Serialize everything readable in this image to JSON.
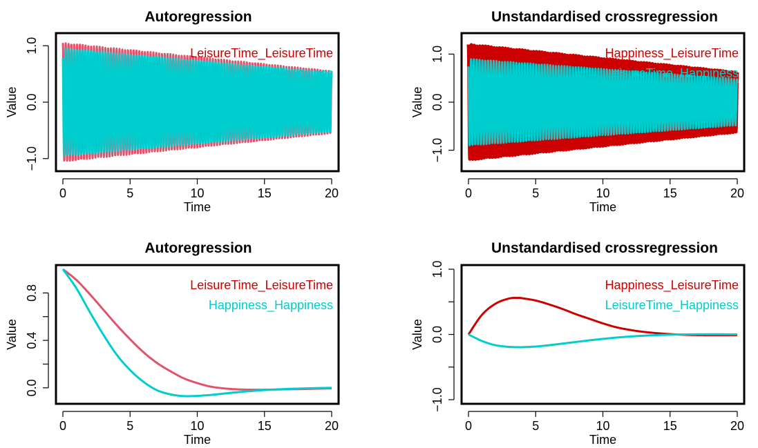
{
  "chart_data": [
    {
      "type": "line",
      "title": "Autoregression",
      "xlabel": "Time",
      "ylabel": "Value",
      "xlim": [
        0,
        20
      ],
      "ylim": [
        -1.15,
        1.15
      ],
      "xticks": [
        0,
        5,
        10,
        15,
        20
      ],
      "yticks": [
        -1.0,
        0.0,
        1.0
      ],
      "ytick_labels": [
        "−1.0",
        "0.0",
        "1.0"
      ],
      "legend": "top-right",
      "series": [
        {
          "name": "LeisureTime_LeisureTime",
          "color": "#DF536B",
          "kind": "oscillating",
          "envelope_start": 1.05,
          "envelope_end": 0.55,
          "cycles": 95,
          "width": 3
        },
        {
          "name": "Happiness_Happiness",
          "color": "#00CDCD",
          "kind": "oscillating",
          "envelope_start": 0.95,
          "envelope_end": 0.52,
          "cycles": 95,
          "width": 3
        }
      ],
      "legend_colors": [
        "#CC0000",
        "#00CDCD"
      ]
    },
    {
      "type": "line",
      "title": "Unstandardised crossregression",
      "xlabel": "Time",
      "ylabel": "Value",
      "xlim": [
        0,
        20
      ],
      "ylim": [
        -1.35,
        1.35
      ],
      "xticks": [
        0,
        5,
        10,
        15,
        20
      ],
      "yticks": [
        -1.0,
        0.0,
        1.0
      ],
      "ytick_labels": [
        "−1.0",
        "0.0",
        "1.0"
      ],
      "legend": "top-right",
      "series": [
        {
          "name": "Happiness_LeisureTime",
          "color": "#CC0000",
          "kind": "oscillating",
          "envelope_start": 1.2,
          "envelope_end": 0.62,
          "cycles": 95,
          "width": 5
        },
        {
          "name": "LeisureTime_Happiness",
          "color": "#00CDCD",
          "kind": "oscillating",
          "envelope_start": 0.9,
          "envelope_end": 0.48,
          "cycles": 95,
          "width": 3
        }
      ],
      "legend_colors": [
        "#CC0000",
        "#00CDCD"
      ]
    },
    {
      "type": "line",
      "title": "Autoregression",
      "xlabel": "Time",
      "ylabel": "Value",
      "xlim": [
        0,
        20
      ],
      "ylim": [
        -0.1,
        1.0
      ],
      "xticks": [
        0,
        5,
        10,
        15,
        20
      ],
      "yticks": [
        0.0,
        0.4,
        0.8
      ],
      "ytick_labels": [
        "0.0",
        "0.4",
        "0.8"
      ],
      "extra_yticks": [
        0.2,
        0.6
      ],
      "legend": "top-right",
      "series": [
        {
          "name": "LeisureTime_LeisureTime",
          "color": "#DF536B",
          "width": 3,
          "x": [
            0,
            1,
            2,
            3,
            4,
            5,
            6,
            7,
            8,
            9,
            10,
            11,
            12,
            13,
            14,
            15,
            16,
            17,
            18,
            19,
            20
          ],
          "y": [
            1.0,
            0.91,
            0.79,
            0.66,
            0.53,
            0.41,
            0.3,
            0.21,
            0.14,
            0.08,
            0.04,
            0.01,
            -0.005,
            -0.013,
            -0.016,
            -0.016,
            -0.014,
            -0.012,
            -0.01,
            -0.007,
            -0.005
          ]
        },
        {
          "name": "Happiness_Happiness",
          "color": "#00CDCD",
          "width": 3,
          "x": [
            0,
            1,
            2,
            3,
            4,
            5,
            6,
            7,
            8,
            9,
            10,
            11,
            12,
            13,
            14,
            15,
            16,
            17,
            18,
            19,
            20
          ],
          "y": [
            1.0,
            0.84,
            0.64,
            0.45,
            0.28,
            0.15,
            0.05,
            -0.02,
            -0.055,
            -0.07,
            -0.068,
            -0.06,
            -0.048,
            -0.037,
            -0.027,
            -0.019,
            -0.013,
            -0.008,
            -0.005,
            -0.002,
            0.0
          ]
        }
      ],
      "legend_colors": [
        "#CC0000",
        "#00CDCD"
      ]
    },
    {
      "type": "line",
      "title": "Unstandardised crossregression",
      "xlabel": "Time",
      "ylabel": "Value",
      "xlim": [
        0,
        20
      ],
      "ylim": [
        -1.0,
        1.0
      ],
      "xticks": [
        0,
        5,
        10,
        15,
        20
      ],
      "yticks": [
        -1.0,
        0.0,
        1.0
      ],
      "ytick_labels": [
        "−1.0",
        "0.0",
        "1.0"
      ],
      "extra_yticks": [
        -0.5,
        0.5
      ],
      "legend": "top-right",
      "series": [
        {
          "name": "Happiness_LeisureTime",
          "color": "#CC0000",
          "width": 3,
          "x": [
            0,
            1,
            2,
            3,
            3.7,
            4,
            5,
            6,
            7,
            8,
            9,
            10,
            11,
            12,
            13,
            14,
            15,
            16,
            17,
            18,
            19,
            20
          ],
          "y": [
            0.0,
            0.3,
            0.47,
            0.55,
            0.56,
            0.555,
            0.52,
            0.46,
            0.39,
            0.31,
            0.24,
            0.17,
            0.11,
            0.07,
            0.04,
            0.02,
            0.005,
            -0.005,
            -0.01,
            -0.012,
            -0.012,
            -0.01
          ]
        },
        {
          "name": "LeisureTime_Happiness",
          "color": "#00CDCD",
          "width": 3,
          "x": [
            0,
            1,
            2,
            3,
            3.7,
            4,
            5,
            6,
            7,
            8,
            9,
            10,
            11,
            12,
            13,
            14,
            15,
            16,
            17,
            18,
            19,
            20
          ],
          "y": [
            0.0,
            -0.1,
            -0.165,
            -0.19,
            -0.195,
            -0.195,
            -0.185,
            -0.165,
            -0.14,
            -0.115,
            -0.09,
            -0.068,
            -0.048,
            -0.032,
            -0.02,
            -0.01,
            -0.004,
            0.0,
            0.002,
            0.003,
            0.002,
            0.001
          ]
        }
      ],
      "legend_colors": [
        "#CC0000",
        "#00CDCD"
      ]
    }
  ]
}
